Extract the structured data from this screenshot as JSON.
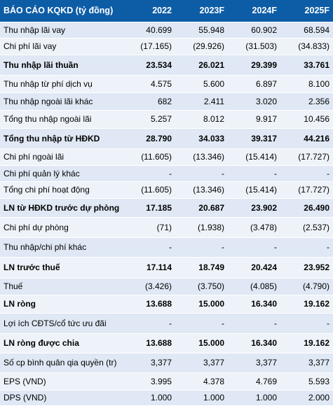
{
  "table": {
    "header": [
      "BÁO CÁO KQKD (tỷ đồng)",
      "2022",
      "2023F",
      "2024F",
      "2025F"
    ],
    "rows": [
      [
        "Thu nhập lãi vay",
        "40.699",
        "55.948",
        "60.902",
        "68.594"
      ],
      [
        "Chi phí lãi vay",
        "(17.165)",
        "(29.926)",
        "(31.503)",
        "(34.833)"
      ],
      [
        "Thu nhập lãi thuần",
        "23.534",
        "26.021",
        "29.399",
        "33.761"
      ],
      [
        "Thu nhập từ phí dịch vụ",
        "4.575",
        "5.600",
        "6.897",
        "8.100"
      ],
      [
        "Thu nhập ngoài lãi khác",
        "682",
        "2.411",
        "3.020",
        "2.356"
      ],
      [
        "Tổng thu nhập ngoài lãi",
        "5.257",
        "8.012",
        "9.917",
        "10.456"
      ],
      [
        "Tổng thu nhập từ HĐKD",
        "28.790",
        "34.033",
        "39.317",
        "44.216"
      ],
      [
        "Chi phí ngoài lãi",
        "(11.605)",
        "(13.346)",
        "(15.414)",
        "(17.727)"
      ],
      [
        "Chi phí quản lý khác",
        "-",
        "-",
        "-",
        "-"
      ],
      [
        "Tổng chi phí hoạt động",
        "(11.605)",
        "(13.346)",
        "(15.414)",
        "(17.727)"
      ],
      [
        "LN từ HĐKD trước dự phòng",
        "17.185",
        "20.687",
        "23.902",
        "26.490"
      ],
      [
        "Chi phí dự phòng",
        "(71)",
        "(1.938)",
        "(3.478)",
        "(2.537)"
      ],
      [
        "Thu nhập/chi phí khác",
        "-",
        "-",
        "-",
        "-"
      ],
      [
        "LN trước thuế",
        "17.114",
        "18.749",
        "20.424",
        "23.952"
      ],
      [
        "Thuế",
        "(3.426)",
        "(3.750)",
        "(4.085)",
        "(4.790)"
      ],
      [
        "LN ròng",
        "13.688",
        "15.000",
        "16.340",
        "19.162"
      ],
      [
        "Lợi ích CĐTS/cổ tức ưu đãi",
        "-",
        "-",
        "-",
        "-"
      ],
      [
        "LN ròng được chia",
        "13.688",
        "15.000",
        "16.340",
        "19.162"
      ],
      [
        "Số cp bình quân qia quyền (tr)",
        "3,377",
        "3,377",
        "3,377",
        "3,377"
      ],
      [
        "EPS (VND)",
        "3.995",
        "4.378",
        "4.769",
        "5.593"
      ],
      [
        "DPS (VND)",
        "1.000",
        "1.000",
        "1.000",
        "2.000"
      ]
    ]
  }
}
